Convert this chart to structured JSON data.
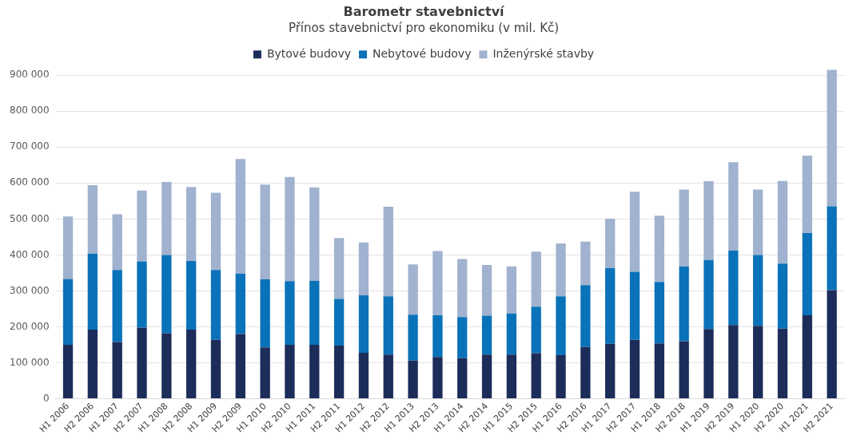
{
  "chart_data": {
    "type": "bar",
    "title": "Barometr stavebnictví",
    "subtitle": "Přínos stavebnictví pro ekonomiku (v mil. Kč)",
    "categories": [
      "H1 2006",
      "H2 2006",
      "H1 2007",
      "H2 2007",
      "H1 2008",
      "H2 2008",
      "H1 2009",
      "H2 2009",
      "H1 2010",
      "H2 2010",
      "H1 2011",
      "H2 2011",
      "H1 2012",
      "H2 2012",
      "H1 2013",
      "H2 2013",
      "H1 2014",
      "H2 2014",
      "H1 2015",
      "H2 2015",
      "H1 2016",
      "H2 2016",
      "H1 2017",
      "H2 2017",
      "H1 2018",
      "H2 2018",
      "H1 2019",
      "H2 2019",
      "H1 2020",
      "H2 2020",
      "H1 2021",
      "H2 2021"
    ],
    "stacked": true,
    "series": [
      {
        "name": "Bytové budovy",
        "color": "#1c2d5a",
        "values": [
          150000,
          192000,
          158000,
          198000,
          182000,
          192000,
          164000,
          180000,
          143000,
          150000,
          150000,
          148000,
          128000,
          123000,
          106000,
          116000,
          113000,
          123000,
          123000,
          127000,
          121000,
          144000,
          153000,
          164000,
          154000,
          160000,
          194000,
          205000,
          203000,
          195000,
          232000,
          302000
        ]
      },
      {
        "name": "Nebytové budovy",
        "color": "#0a72b9",
        "values": [
          183000,
          212000,
          200000,
          184000,
          218000,
          191000,
          194000,
          168000,
          189000,
          177000,
          178000,
          130000,
          160000,
          162000,
          128000,
          116000,
          114000,
          108000,
          114000,
          129000,
          164000,
          172000,
          210000,
          189000,
          171000,
          208000,
          192000,
          207000,
          197000,
          181000,
          229000,
          233000
        ]
      },
      {
        "name": "Inženýrské stavby",
        "color": "#a0b2cf",
        "values": [
          174000,
          190000,
          155000,
          197000,
          203000,
          206000,
          215000,
          319000,
          264000,
          290000,
          260000,
          169000,
          147000,
          249000,
          140000,
          179000,
          162000,
          141000,
          131000,
          153000,
          147000,
          121000,
          138000,
          223000,
          184000,
          214000,
          219000,
          246000,
          182000,
          230000,
          215000,
          380000
        ]
      }
    ],
    "ylim": [
      0,
      920000
    ],
    "yticks": [
      {
        "value": 0,
        "label": "0"
      },
      {
        "value": 100000,
        "label": "100 000"
      },
      {
        "value": 200000,
        "label": "200 000"
      },
      {
        "value": 300000,
        "label": "300 000"
      },
      {
        "value": 400000,
        "label": "400 000"
      },
      {
        "value": 500000,
        "label": "500 000"
      },
      {
        "value": 600000,
        "label": "600 000"
      },
      {
        "value": 700000,
        "label": "700 000"
      },
      {
        "value": 800000,
        "label": "800 000"
      },
      {
        "value": 900000,
        "label": "900 000"
      }
    ],
    "grid": "y",
    "legend": "top"
  }
}
